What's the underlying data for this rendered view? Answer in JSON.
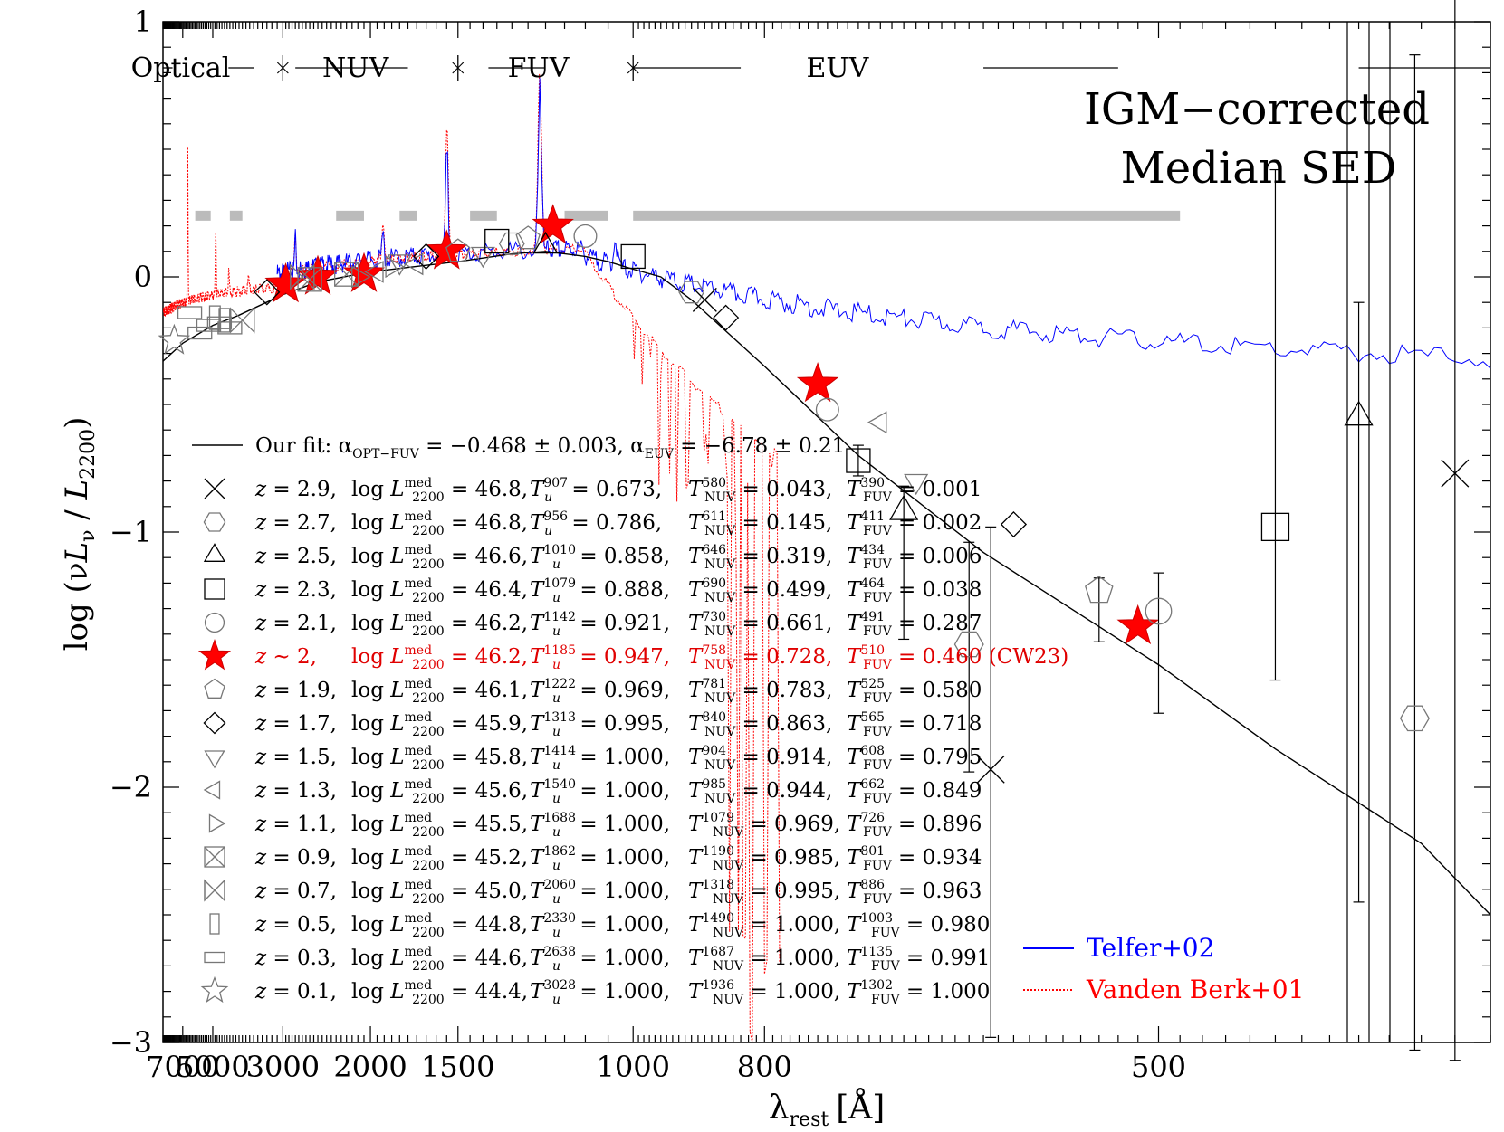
{
  "chart_data": {
    "type": "scatter",
    "title_lines": [
      "IGM−corrected",
      "Median SED"
    ],
    "xlabel": "λ",
    "xlabel_sub": "rest",
    "xlabel_unit": "[Å]",
    "ylabel_parts": [
      "log (ν",
      "L",
      "ν",
      " / ",
      "L",
      "2200",
      ")"
    ],
    "x_scale": "reciprocal",
    "xlim": [
      9500,
      380
    ],
    "ylim": [
      -3,
      1
    ],
    "x_ticks": [
      7000,
      5000,
      3000,
      2000,
      1500,
      1000,
      800,
      500
    ],
    "y_ticks": [
      1,
      0,
      -1,
      -2,
      -3
    ],
    "y_tick_labels": [
      "1",
      "0",
      "−1",
      "−2",
      "−3"
    ],
    "bands": [
      {
        "label": "Optical",
        "range": [
          9500,
          3000
        ]
      },
      {
        "label": "NUV",
        "range": [
          3000,
          1500
        ]
      },
      {
        "label": "FUV",
        "range": [
          1500,
          1000
        ]
      },
      {
        "label": "EUV",
        "range": [
          1000,
          380
        ]
      }
    ],
    "fit_line": {
      "label_prefix": "Our fit: ",
      "label": "α",
      "alpha_opt_sub": "OPT−FUV",
      "alpha_opt_value": " = −0.468 ± 0.003, ",
      "alpha_euv_sub": "EUV",
      "alpha_euv_value": " = −6.78 ± 0.21",
      "points": [
        [
          9500,
          -0.33
        ],
        [
          7000,
          -0.26
        ],
        [
          5000,
          -0.19
        ],
        [
          4000,
          -0.15
        ],
        [
          3000,
          -0.07
        ],
        [
          2500,
          -0.02
        ],
        [
          2000,
          0.02
        ],
        [
          1500,
          0.06
        ],
        [
          1300,
          0.09
        ],
        [
          1200,
          0.1
        ],
        [
          1100,
          0.08
        ],
        [
          1050,
          0.06
        ],
        [
          1000,
          0.03
        ],
        [
          950,
          0.0
        ],
        [
          900,
          -0.09
        ],
        [
          800,
          -0.35
        ],
        [
          700,
          -0.7
        ],
        [
          600,
          -1.08
        ],
        [
          500,
          -1.52
        ],
        [
          450,
          -1.85
        ],
        [
          400,
          -2.22
        ],
        [
          380,
          -2.5
        ]
      ]
    },
    "legend_rows": [
      {
        "symbol": "x",
        "z": "z = 2.9,",
        "lum": " = 46.8,",
        "tu_sup": "907",
        "tu": " = 0.673,",
        "tn_sup": "580",
        "tn": " = 0.043,",
        "tf_sup": "390",
        "tf": " = 0.001",
        "extra": ""
      },
      {
        "symbol": "hexagon",
        "z": "z = 2.7,",
        "lum": " = 46.8,",
        "tu_sup": "956",
        "tu": " = 0.786,",
        "tn_sup": "611",
        "tn": " = 0.145,",
        "tf_sup": "411",
        "tf": " = 0.002",
        "extra": ""
      },
      {
        "symbol": "triangle-up",
        "z": "z = 2.5,",
        "lum": " = 46.6,",
        "tu_sup": "1010",
        "tu": " = 0.858,",
        "tn_sup": "646",
        "tn": " = 0.319,",
        "tf_sup": "434",
        "tf": " = 0.006",
        "extra": ""
      },
      {
        "symbol": "square",
        "z": "z = 2.3,",
        "lum": " = 46.4,",
        "tu_sup": "1079",
        "tu": " = 0.888,",
        "tn_sup": "690",
        "tn": " = 0.499,",
        "tf_sup": "464",
        "tf": " = 0.038",
        "extra": ""
      },
      {
        "symbol": "circle",
        "z": "z = 2.1,",
        "lum": " = 46.2,",
        "tu_sup": "1142",
        "tu": " = 0.921,",
        "tn_sup": "730",
        "tn": " = 0.661,",
        "tf_sup": "491",
        "tf": " = 0.287",
        "extra": ""
      },
      {
        "symbol": "star-red",
        "z": "z ~ 2,",
        "lum": " = 46.2,",
        "tu_sup": "1185",
        "tu": " = 0.947,",
        "tn_sup": "758",
        "tn": " = 0.728,",
        "tf_sup": "510",
        "tf": " = 0.460",
        "extra": " (CW23)"
      },
      {
        "symbol": "pentagon",
        "z": "z = 1.9,",
        "lum": " = 46.1,",
        "tu_sup": "1222",
        "tu": " = 0.969,",
        "tn_sup": "781",
        "tn": " = 0.783,",
        "tf_sup": "525",
        "tf": " = 0.580",
        "extra": ""
      },
      {
        "symbol": "diamond",
        "z": "z = 1.7,",
        "lum": " = 45.9,",
        "tu_sup": "1313",
        "tu": " = 0.995,",
        "tn_sup": "840",
        "tn": " = 0.863,",
        "tf_sup": "565",
        "tf": " = 0.718",
        "extra": ""
      },
      {
        "symbol": "triangle-down",
        "z": "z = 1.5,",
        "lum": " = 45.8,",
        "tu_sup": "1414",
        "tu": " = 1.000,",
        "tn_sup": "904",
        "tn": " = 0.914,",
        "tf_sup": "608",
        "tf": " = 0.795",
        "extra": ""
      },
      {
        "symbol": "triangle-left",
        "z": "z = 1.3,",
        "lum": " = 45.6,",
        "tu_sup": "1540",
        "tu": " = 1.000,",
        "tn_sup": "985",
        "tn": " = 0.944,",
        "tf_sup": "662",
        "tf": " = 0.849",
        "extra": ""
      },
      {
        "symbol": "triangle-right",
        "z": "z = 1.1,",
        "lum": " = 45.5,",
        "tu_sup": "1688",
        "tu": " = 1.000,",
        "tn_sup": "1079",
        "tn": " = 0.969,",
        "tf_sup": "726",
        "tf": " = 0.896",
        "extra": ""
      },
      {
        "symbol": "hourglass",
        "z": "z = 0.9,",
        "lum": " = 45.2,",
        "tu_sup": "1862",
        "tu": " = 1.000,",
        "tn_sup": "1190",
        "tn": " = 0.985,",
        "tf_sup": "801",
        "tf": " = 0.934",
        "extra": ""
      },
      {
        "symbol": "bowtie",
        "z": "z = 0.7,",
        "lum": " = 45.0,",
        "tu_sup": "2060",
        "tu": " = 1.000,",
        "tn_sup": "1318",
        "tn": " = 0.995,",
        "tf_sup": "886",
        "tf": " = 0.963",
        "extra": ""
      },
      {
        "symbol": "rect-tall",
        "z": "z = 0.5,",
        "lum": " = 44.8,",
        "tu_sup": "2330",
        "tu": " = 1.000,",
        "tn_sup": "1490",
        "tn": " = 1.000,",
        "tf_sup": "1003",
        "tf": " = 0.980",
        "extra": ""
      },
      {
        "symbol": "rect-wide",
        "z": "z = 0.3,",
        "lum": " = 44.6,",
        "tu_sup": "2638",
        "tu": " = 1.000,",
        "tn_sup": "1687",
        "tn": " = 1.000,",
        "tf_sup": "1135",
        "tf": " = 0.991",
        "extra": ""
      },
      {
        "symbol": "star-open",
        "z": "z = 0.1,",
        "lum": " = 44.4,",
        "tu_sup": "3028",
        "tu": " = 1.000,",
        "tn_sup": "1936",
        "tn": " = 1.000,",
        "tf_sup": "1302",
        "tf": " = 1.000",
        "extra": ""
      }
    ],
    "legend_labels": {
      "lum_sup": "med",
      "lum_sub": "2200",
      "tn_sub": "NUV",
      "tf_sub": "FUV"
    },
    "spectra": [
      {
        "name": "Telfer+02",
        "color": "#0000ff",
        "style": "solid"
      },
      {
        "name": "Vanden Berk+01",
        "color": "#ff0000",
        "style": "dotted"
      }
    ],
    "gray_segments": [
      [
        6000,
        5100
      ],
      [
        4300,
        3900
      ],
      [
        2300,
        2050
      ],
      [
        1800,
        1700
      ],
      [
        1450,
        1350
      ],
      [
        1150,
        1050
      ],
      [
        1000,
        490
      ]
    ],
    "points": [
      {
        "symbol": "star-red",
        "x": 2950,
        "y": -0.03
      },
      {
        "symbol": "star-red",
        "x": 2500,
        "y": 0.0
      },
      {
        "symbol": "star-red",
        "x": 2050,
        "y": 0.01
      },
      {
        "symbol": "star-red",
        "x": 1550,
        "y": 0.1
      },
      {
        "symbol": "star-red",
        "x": 1180,
        "y": 0.2
      },
      {
        "symbol": "star-red",
        "x": 740,
        "y": -0.42
      },
      {
        "symbol": "star-red",
        "x": 510,
        "y": -1.37
      },
      {
        "symbol": "star-open",
        "x": 7900,
        "y": -0.25
      },
      {
        "symbol": "rect-wide",
        "x": 6400,
        "y": -0.14
      },
      {
        "symbol": "rect-wide",
        "x": 5700,
        "y": -0.22
      },
      {
        "symbol": "rect-wide",
        "x": 5200,
        "y": -0.19
      },
      {
        "symbol": "rect-wide",
        "x": 4700,
        "y": -0.18
      },
      {
        "symbol": "rect-wide",
        "x": 4300,
        "y": -0.2
      },
      {
        "symbol": "rect-tall",
        "x": 4900,
        "y": -0.16
      },
      {
        "symbol": "rect-tall",
        "x": 4500,
        "y": -0.17
      },
      {
        "symbol": "bowtie",
        "x": 3900,
        "y": -0.17
      },
      {
        "symbol": "bowtie",
        "x": 2700,
        "y": 0.0
      },
      {
        "symbol": "hourglass",
        "x": 2600,
        "y": -0.01
      },
      {
        "symbol": "hourglass",
        "x": 2200,
        "y": 0.01
      },
      {
        "symbol": "triangle-right",
        "x": 2100,
        "y": 0.0
      },
      {
        "symbol": "triangle-right",
        "x": 1850,
        "y": 0.04
      },
      {
        "symbol": "triangle-left",
        "x": 1950,
        "y": 0.02
      },
      {
        "symbol": "triangle-left",
        "x": 1700,
        "y": 0.05
      },
      {
        "symbol": "triangle-down",
        "x": 1800,
        "y": 0.06
      },
      {
        "symbol": "triangle-down",
        "x": 1400,
        "y": 0.09
      },
      {
        "symbol": "diamond",
        "x": 3300,
        "y": -0.06
      },
      {
        "symbol": "diamond",
        "x": 1650,
        "y": 0.08
      },
      {
        "symbol": "diamond",
        "x": 850,
        "y": -0.16
      },
      {
        "symbol": "pentagon",
        "x": 1500,
        "y": 0.1
      },
      {
        "symbol": "pentagon",
        "x": 1250,
        "y": 0.15
      },
      {
        "symbol": "circle",
        "x": 1100,
        "y": 0.16
      },
      {
        "symbol": "square",
        "x": 1350,
        "y": 0.14
      },
      {
        "symbol": "square",
        "x": 1000,
        "y": 0.08
      },
      {
        "symbol": "triangle-up",
        "x": 1200,
        "y": 0.12
      },
      {
        "symbol": "hexagon",
        "x": 1300,
        "y": 0.13
      },
      {
        "symbol": "hexagon",
        "x": 900,
        "y": -0.06
      },
      {
        "symbol": "x",
        "x": 880,
        "y": -0.09
      },
      {
        "symbol": "circle",
        "x": 730,
        "y": -0.52
      },
      {
        "symbol": "triangle-left",
        "x": 680,
        "y": -0.57
      },
      {
        "symbol": "square",
        "x": 700,
        "y": -0.72,
        "err": [
          0.06,
          0.06
        ]
      },
      {
        "symbol": "triangle-down",
        "x": 650,
        "y": -0.8
      },
      {
        "symbol": "triangle-up",
        "x": 660,
        "y": -0.92,
        "err": [
          0.5,
          0.1
        ]
      },
      {
        "symbol": "diamond",
        "x": 580,
        "y": -0.97
      },
      {
        "symbol": "hexagon",
        "x": 610,
        "y": -1.44,
        "err": [
          0.5,
          0.4
        ]
      },
      {
        "symbol": "pentagon",
        "x": 530,
        "y": -1.23,
        "err": [
          0.2,
          0.05
        ]
      },
      {
        "symbol": "circle",
        "x": 500,
        "y": -1.31,
        "err": [
          0.4,
          0.15
        ]
      },
      {
        "symbol": "x",
        "x": 595,
        "y": -1.93,
        "err": [
          1.05,
          0.95
        ]
      },
      {
        "symbol": "square",
        "x": 450,
        "y": -0.98,
        "err": [
          0.6,
          1.4
        ]
      },
      {
        "symbol": "triangle-up",
        "x": 420,
        "y": -0.55,
        "err": [
          1.9,
          0.45
        ]
      },
      {
        "symbol": "hexagon",
        "x": 402,
        "y": -1.73,
        "err": [
          1.3,
          2.6
        ]
      },
      {
        "symbol": "x",
        "x": 390,
        "y": -0.77,
        "err": [
          2.3,
          2.0
        ]
      }
    ]
  }
}
